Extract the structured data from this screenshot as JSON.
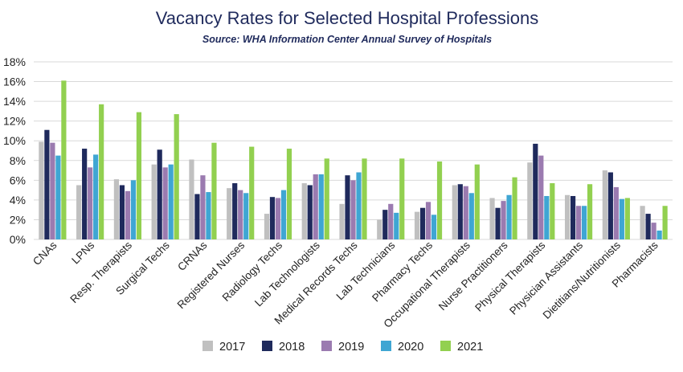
{
  "chart_data": {
    "type": "bar",
    "title": "Vacancy Rates for Selected Hospital Professions",
    "subtitle": "Source: WHA Information Center Annual Survey of Hospitals",
    "xlabel": "",
    "ylabel": "",
    "ylim": [
      0,
      18
    ],
    "yticks": [
      "0%",
      "2%",
      "4%",
      "6%",
      "8%",
      "10%",
      "12%",
      "14%",
      "16%",
      "18%"
    ],
    "grid": true,
    "legend_position": "bottom",
    "categories": [
      "CNAs",
      "LPNs",
      "Resp. Therapists",
      "Surgical Techs",
      "CRNAs",
      "Registered Nurses",
      "Radiology Techs",
      "Lab Technologists",
      "Medical Records Techs",
      "Lab Technicians",
      "Pharmacy Techs",
      "Occupational Therapists",
      "Nurse Practitioners",
      "Physical Therapists",
      "Physician Assistants",
      "Dietitians/Nutritionists",
      "Pharmacists"
    ],
    "series": [
      {
        "name": "2017",
        "color": "#c0c0c0",
        "values": [
          9.9,
          5.5,
          6.1,
          7.6,
          8.1,
          5.2,
          2.6,
          5.7,
          3.6,
          2.0,
          2.8,
          5.5,
          4.2,
          7.8,
          4.5,
          7.0,
          3.4
        ]
      },
      {
        "name": "2018",
        "color": "#1f2a5c",
        "values": [
          11.1,
          9.2,
          5.5,
          9.1,
          4.6,
          5.7,
          4.3,
          5.5,
          6.5,
          3.0,
          3.2,
          5.6,
          3.2,
          9.7,
          4.4,
          6.8,
          2.6
        ]
      },
      {
        "name": "2019",
        "color": "#9b7bb0",
        "values": [
          9.8,
          7.3,
          4.9,
          7.3,
          6.5,
          5.0,
          4.2,
          6.6,
          6.0,
          3.6,
          3.8,
          5.4,
          3.9,
          8.5,
          3.4,
          5.3,
          1.7
        ]
      },
      {
        "name": "2020",
        "color": "#3fa6d3",
        "values": [
          8.5,
          8.6,
          6.0,
          7.6,
          4.8,
          4.7,
          5.0,
          6.6,
          6.8,
          2.7,
          2.5,
          4.7,
          4.5,
          4.4,
          3.4,
          4.1,
          0.9
        ]
      },
      {
        "name": "2021",
        "color": "#92d050",
        "values": [
          16.1,
          13.7,
          12.9,
          12.7,
          9.8,
          9.4,
          9.2,
          8.2,
          8.2,
          8.2,
          7.9,
          7.6,
          6.3,
          5.7,
          5.6,
          4.2,
          3.4
        ]
      }
    ]
  }
}
